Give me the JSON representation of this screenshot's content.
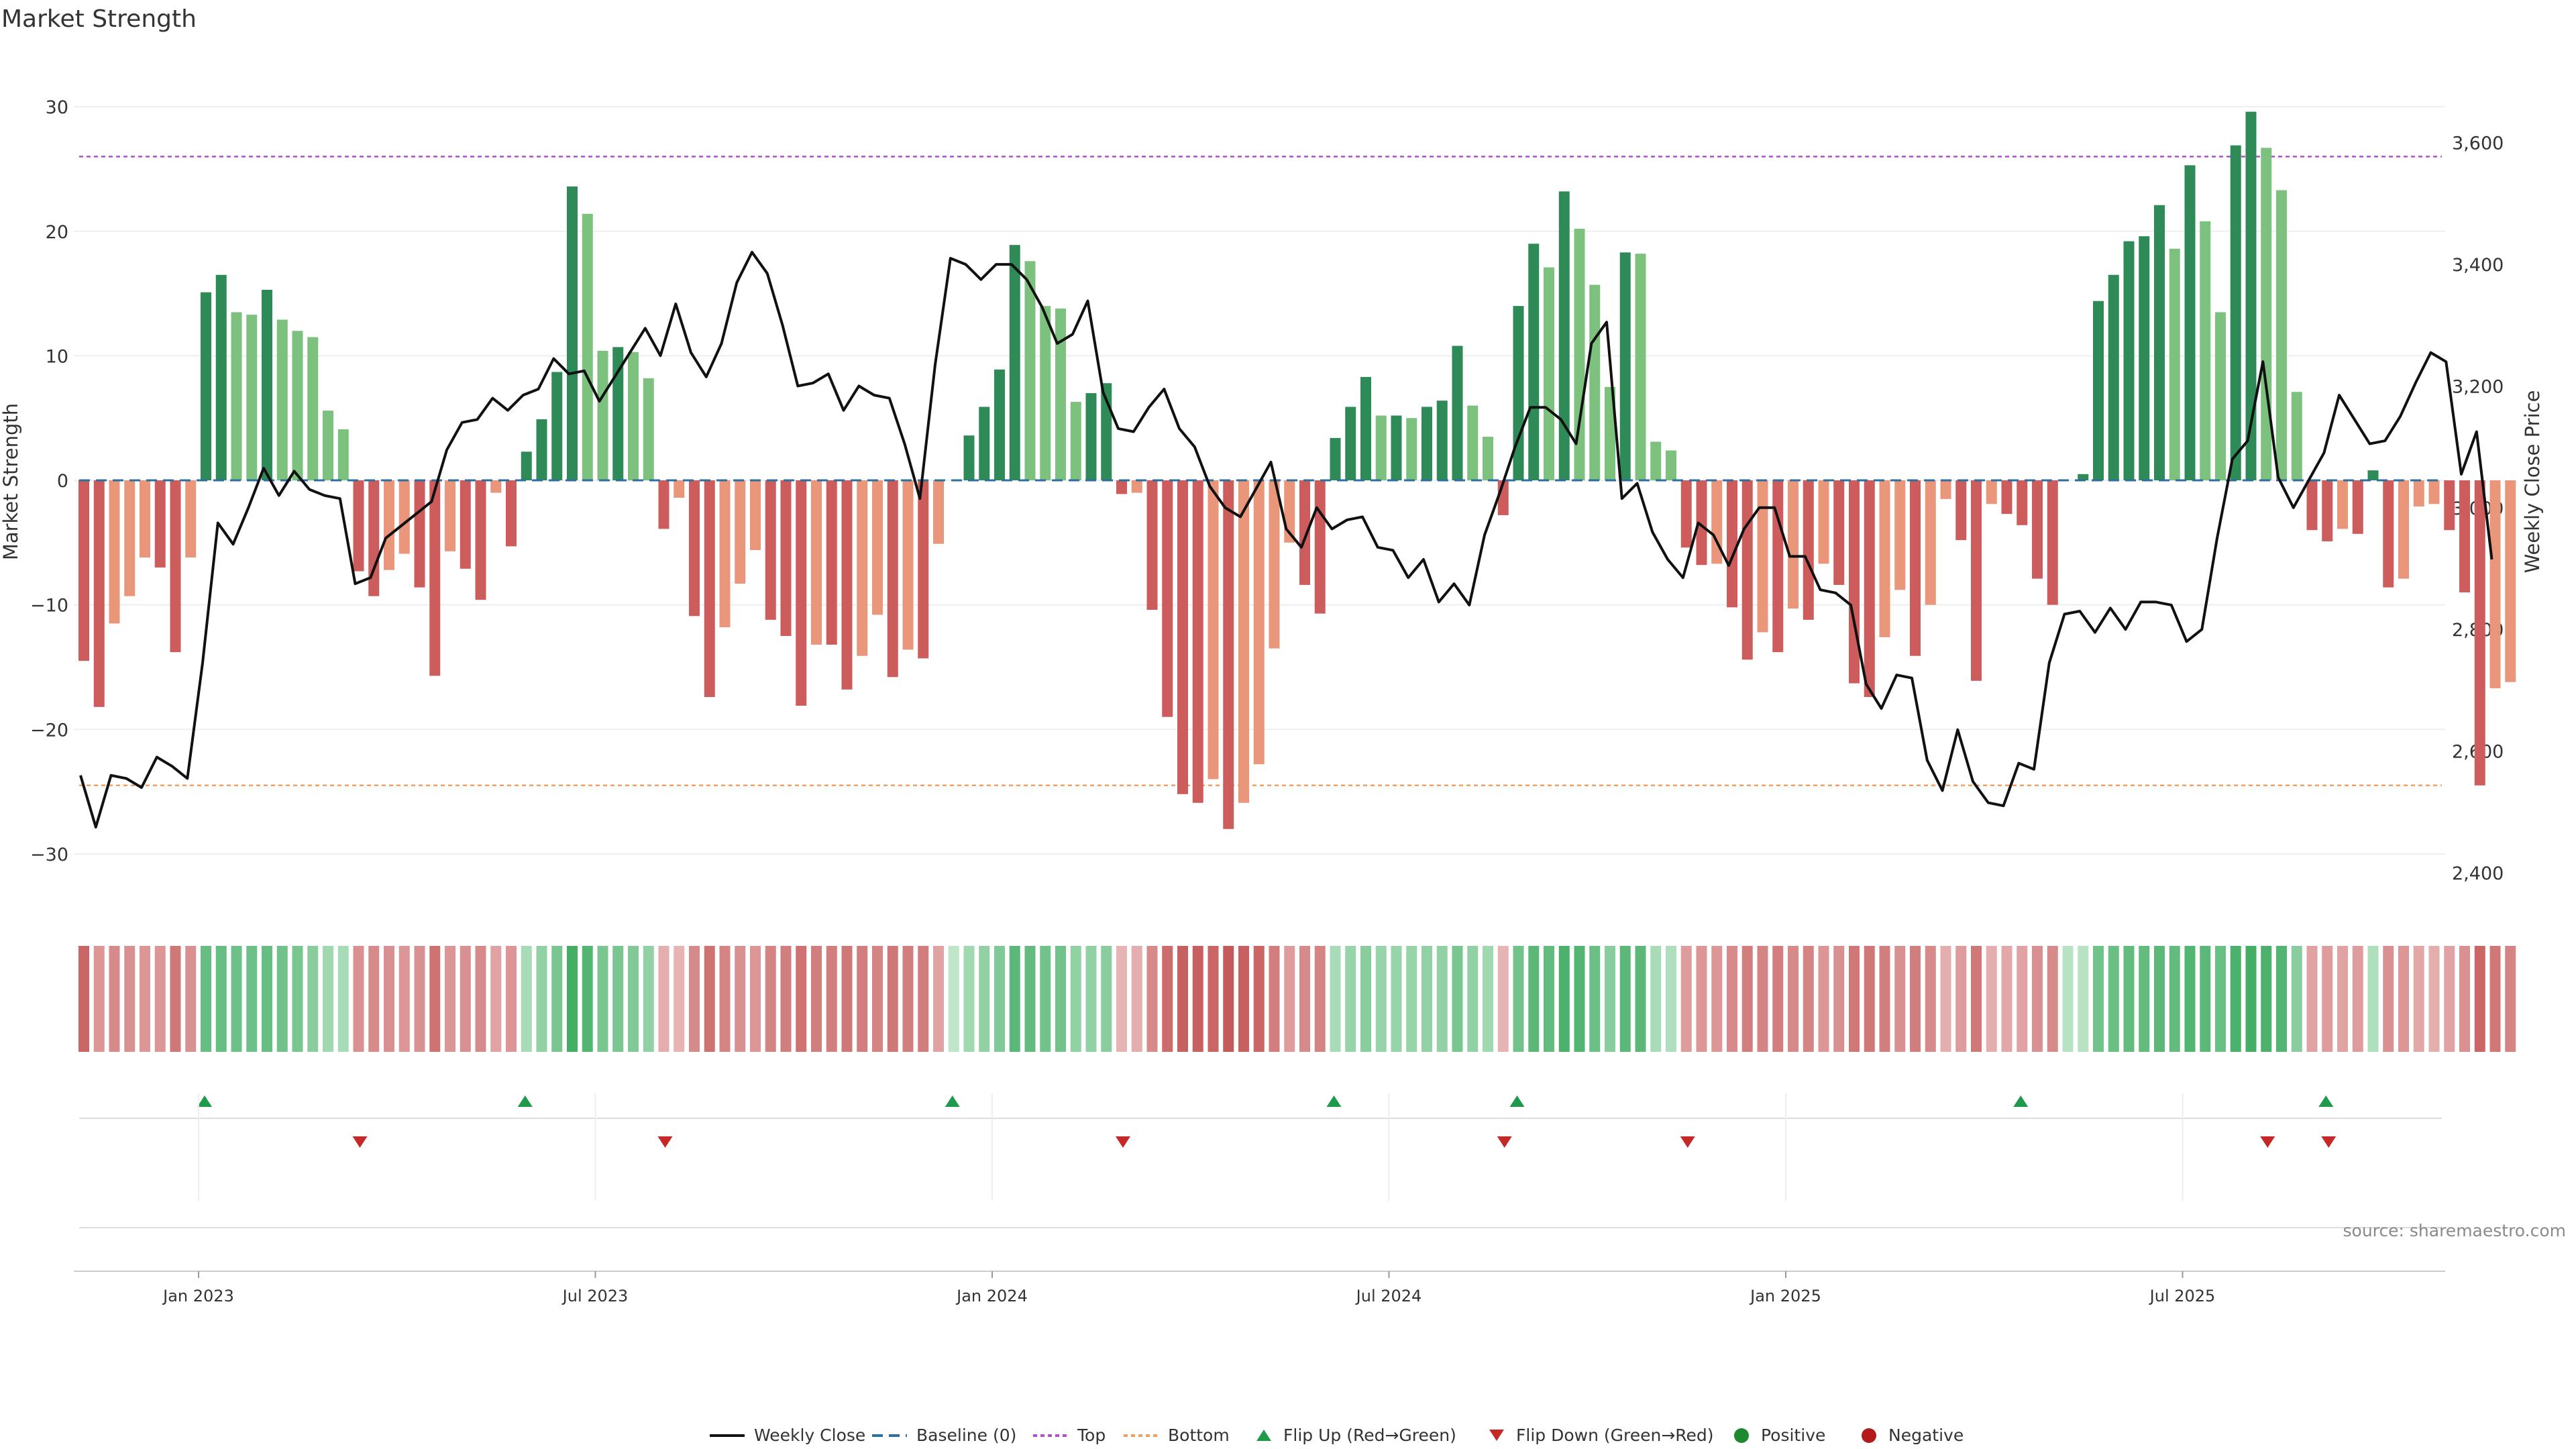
{
  "chart_data": {
    "type": "bar",
    "title": "Market Strength",
    "ylabel": "Market Strength",
    "y2label": "Weekly Close Price",
    "ylim": [
      -32,
      32
    ],
    "y2lim": [
      2390,
      3700
    ],
    "yticks": [
      "30",
      "20",
      "10",
      "0",
      "−10",
      "−20",
      "−30"
    ],
    "y2ticks": [
      "3,600",
      "3,400",
      "3,200",
      "3,000",
      "2,800",
      "2,600",
      "2,400"
    ],
    "xtick_labels": [
      "Jan 2023",
      "Jul 2023",
      "Jan 2024",
      "Jul 2024",
      "Jan 2025",
      "Jul 2025"
    ],
    "top_line": 26,
    "bottom_line": -24.5,
    "strength": [
      -14.5,
      -18.2,
      -11.5,
      -9.3,
      -6.2,
      -7.0,
      -13.8,
      -6.2,
      15.1,
      16.5,
      13.5,
      13.3,
      15.3,
      12.9,
      12.0,
      11.5,
      5.6,
      4.1,
      -7.3,
      -9.3,
      -7.2,
      -5.9,
      -8.6,
      -15.7,
      -5.7,
      -7.1,
      -9.6,
      -1.0,
      -5.3,
      2.3,
      4.9,
      8.7,
      23.6,
      21.4,
      10.4,
      10.7,
      10.3,
      8.2,
      -3.9,
      -1.4,
      -10.9,
      -17.4,
      -11.8,
      -8.3,
      -5.6,
      -11.2,
      -12.5,
      -18.1,
      -13.2,
      -13.2,
      -16.8,
      -14.1,
      -10.8,
      -15.8,
      -13.6,
      -14.3,
      -5.1,
      0,
      3.6,
      5.9,
      8.9,
      18.9,
      17.6,
      14.0,
      13.8,
      6.3,
      7.0,
      7.8,
      -1.1,
      -1.0,
      -10.4,
      -19.0,
      -25.2,
      -25.9,
      -24.0,
      -28.0,
      -25.9,
      -22.8,
      -13.5,
      -5.0,
      -8.4,
      -10.7,
      3.4,
      5.9,
      8.3,
      5.2,
      5.2,
      5.0,
      5.9,
      6.4,
      10.8,
      6.0,
      3.5,
      -2.8,
      14.0,
      19.0,
      17.1,
      23.2,
      20.2,
      15.7,
      7.5,
      18.3,
      18.2,
      3.1,
      2.4,
      -5.4,
      -6.8,
      -6.7,
      -10.2,
      -14.4,
      -12.2,
      -13.8,
      -10.3,
      -11.2,
      -6.7,
      -8.4,
      -16.3,
      -17.4,
      -12.6,
      -8.8,
      -14.1,
      -10.0,
      -1.5,
      -4.8,
      -16.1,
      -1.9,
      -2.7,
      -3.6,
      -7.9,
      -10.0,
      0,
      0.5,
      14.4,
      16.5,
      19.2,
      19.6,
      22.1,
      18.6,
      25.3,
      20.8,
      13.5,
      26.9,
      29.6,
      26.7,
      23.3,
      7.1,
      -4.0,
      -4.9,
      -3.9,
      -4.3,
      0.8,
      -8.6,
      -7.9,
      -2.1,
      -1.9,
      -4.0,
      -9.0,
      -24.5,
      -16.7,
      -16.2
    ],
    "weekly_close": [
      2560,
      2475,
      2560,
      2555,
      2540,
      2590,
      2575,
      2555,
      2745,
      2975,
      2940,
      3000,
      3065,
      3020,
      3060,
      3030,
      3020,
      3015,
      2875,
      2885,
      2950,
      2970,
      2990,
      3010,
      3095,
      3140,
      3145,
      3180,
      3160,
      3185,
      3195,
      3245,
      3220,
      3225,
      3175,
      3215,
      3255,
      3295,
      3250,
      3335,
      3255,
      3215,
      3270,
      3370,
      3420,
      3385,
      3300,
      3200,
      3205,
      3220,
      3160,
      3200,
      3185,
      3180,
      3105,
      3015,
      3235,
      3410,
      3400,
      3375,
      3400,
      3400,
      3375,
      3330,
      3270,
      3285,
      3340,
      3190,
      3130,
      3125,
      3165,
      3195,
      3130,
      3100,
      3035,
      3000,
      2985,
      3030,
      3075,
      2965,
      2935,
      3000,
      2965,
      2980,
      2985,
      2935,
      2930,
      2885,
      2915,
      2845,
      2875,
      2840,
      2955,
      3025,
      3100,
      3165,
      3165,
      3145,
      3105,
      3270,
      3305,
      3015,
      3040,
      2960,
      2915,
      2885,
      2975,
      2955,
      2905,
      2965,
      3000,
      3000,
      2920,
      2920,
      2865,
      2860,
      2840,
      2710,
      2670,
      2725,
      2720,
      2585,
      2535,
      2635,
      2550,
      2515,
      2510,
      2580,
      2570,
      2745,
      2825,
      2830,
      2795,
      2835,
      2800,
      2845,
      2845,
      2840,
      2780,
      2800,
      2950,
      3080,
      3110,
      3240,
      3050,
      3000,
      3045,
      3090,
      3185,
      3145,
      3105,
      3110,
      3150,
      3205,
      3255,
      3240,
      3055,
      3125,
      2915
    ],
    "band_heat": [
      -0.9,
      -0.5,
      -0.6,
      -0.55,
      -0.5,
      -0.5,
      -0.75,
      -0.55,
      0.72,
      0.72,
      0.68,
      0.68,
      0.72,
      0.66,
      0.6,
      0.5,
      0.35,
      0.3,
      -0.55,
      -0.6,
      -0.55,
      -0.5,
      -0.55,
      -0.8,
      -0.5,
      -0.55,
      -0.6,
      -0.4,
      -0.5,
      0.3,
      0.45,
      0.6,
      0.95,
      0.85,
      0.6,
      0.6,
      0.55,
      0.45,
      -0.3,
      -0.25,
      -0.6,
      -0.8,
      -0.65,
      -0.55,
      -0.5,
      -0.65,
      -0.7,
      -0.8,
      -0.7,
      -0.7,
      -0.75,
      -0.7,
      -0.65,
      -0.75,
      -0.7,
      -0.7,
      -0.4,
      0.15,
      0.35,
      0.45,
      0.55,
      0.8,
      0.75,
      0.65,
      0.65,
      0.45,
      0.45,
      0.5,
      -0.25,
      -0.3,
      -0.6,
      -0.85,
      -0.95,
      -0.95,
      -0.9,
      -1.0,
      -0.95,
      -0.9,
      -0.7,
      -0.45,
      -0.6,
      -0.65,
      0.3,
      0.4,
      0.5,
      0.4,
      0.4,
      0.4,
      0.45,
      0.45,
      0.6,
      0.45,
      0.35,
      -0.25,
      0.65,
      0.8,
      0.75,
      0.9,
      0.85,
      0.7,
      0.5,
      0.8,
      0.8,
      0.3,
      0.25,
      -0.45,
      -0.5,
      -0.5,
      -0.6,
      -0.7,
      -0.65,
      -0.7,
      -0.6,
      -0.65,
      -0.5,
      -0.55,
      -0.75,
      -0.75,
      -0.7,
      -0.55,
      -0.7,
      -0.6,
      -0.3,
      -0.45,
      -0.75,
      -0.3,
      -0.35,
      -0.4,
      -0.55,
      -0.6,
      0.2,
      0.2,
      0.65,
      0.7,
      0.75,
      0.75,
      0.8,
      0.75,
      0.85,
      0.8,
      0.7,
      0.9,
      0.95,
      0.9,
      0.85,
      0.5,
      -0.4,
      -0.45,
      -0.4,
      -0.45,
      0.25,
      -0.55,
      -0.5,
      -0.35,
      -0.3,
      -0.4,
      -0.55,
      -0.9,
      -0.75,
      -0.65
    ],
    "flip_up_weeks": [
      8,
      29,
      57,
      82,
      94,
      127,
      147
    ],
    "flip_down_weeks": [
      18,
      38,
      68,
      93,
      105,
      143,
      147
    ],
    "legend": [
      "Weekly Close",
      "Baseline (0)",
      "Top",
      "Bottom",
      "Flip Up (Red→Green)",
      "Flip Down (Green→Red)",
      "Positive",
      "Negative"
    ],
    "legend_colors": {
      "weekly_close": "#111111",
      "baseline": "#2f6f9f",
      "top": "#b04fd0",
      "bottom": "#f0a060",
      "flip_up": "#1f9a4a",
      "flip_down": "#c62828",
      "positive": "#1e8a2e",
      "negative": "#b31b1b"
    },
    "bar_colors": {
      "pos_rising": "#2e8b57",
      "pos_falling": "#7cc27e",
      "neg_falling": "#cd5c5c",
      "neg_rising": "#e9967a"
    },
    "source": "source: sharemaestro.com"
  }
}
